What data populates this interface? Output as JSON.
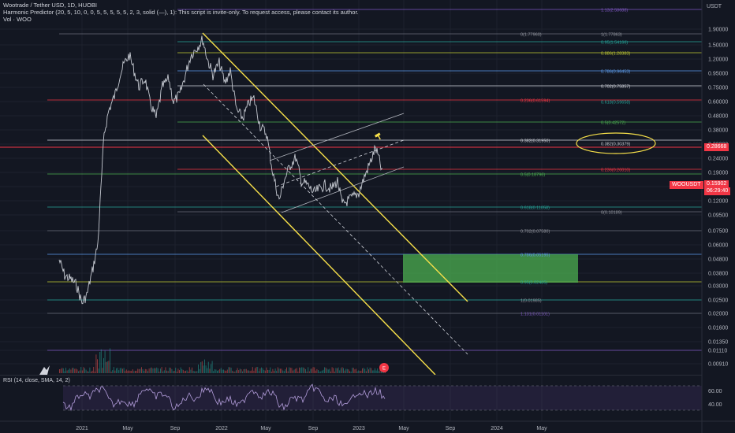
{
  "header": {
    "symbol_line": "Wootrade / Tether USD, 1D, HUOBI",
    "indicator_line": "Harmonic Predictor (20, 5, 10, 0, 0, 5, 5, 5, 5, 5, 2, 3, solid (—), 1): This script is invite-only. To request access, please contact its author.",
    "volume_line": "Vol · WOO"
  },
  "currency": "USDT",
  "price_axis": [
    "1.90000",
    "1.50000",
    "1.20000",
    "0.95000",
    "0.75000",
    "0.60000",
    "0.48000",
    "0.38000",
    "0.30000",
    "0.24000",
    "0.19000",
    "0.15000",
    "0.12000",
    "0.09500",
    "0.07500",
    "0.06000",
    "0.04800",
    "0.03800",
    "0.03000",
    "0.02500",
    "0.02000",
    "0.01600",
    "0.01350",
    "0.01110",
    "0.00910"
  ],
  "fib_left": [
    {
      "label": "0(1.77960)",
      "color": "#9598a1"
    },
    {
      "label": "0.236(0.61594)",
      "color": "#f23645"
    },
    {
      "label": "0.382(0.31950)",
      "color": "#d1d4dc"
    },
    {
      "label": "0.5(0.18796)",
      "color": "#4caf50"
    },
    {
      "label": "0.618(0.11058)",
      "color": "#26a69a"
    },
    {
      "label": "0.702(0.07580)",
      "color": "#9598a1"
    },
    {
      "label": "0.786(0.05195)",
      "color": "#5d9cec"
    },
    {
      "label": "0.95(0.02485)",
      "color": "#26a69a"
    },
    {
      "label": "1(0.01985)",
      "color": "#9598a1"
    },
    {
      "label": "1.131(0.01101)",
      "color": "#7e57c2"
    }
  ],
  "fib_right": [
    {
      "label": "1.13(2.58688)",
      "color": "#7e57c2"
    },
    {
      "label": "1(1.77863)",
      "color": "#9598a1"
    },
    {
      "label": "0.95(1.54166)",
      "color": "#26a69a"
    },
    {
      "label": "0.886(1.28383)",
      "color": "#c0ca33"
    },
    {
      "label": "0.786(0.96453)",
      "color": "#5d9cec"
    },
    {
      "label": "0.702(0.75857)",
      "color": "#d1d4dc"
    },
    {
      "label": "0.618(0.59658)",
      "color": "#26a69a"
    },
    {
      "label": "0.5(0.42572)",
      "color": "#4caf50"
    },
    {
      "label": "0.382(0.30379)",
      "color": "#d1d4dc"
    },
    {
      "label": "0.236(0.20010)",
      "color": "#f23645"
    },
    {
      "label": "0(0.10189)",
      "color": "#9598a1"
    }
  ],
  "badges": {
    "current_price": "0.28668",
    "symbol_tag": "WOOUSDT",
    "last_price": "0.15902",
    "countdown": "06:29:40"
  },
  "rsi": {
    "label": "RSI (14, close, SMA, 14, 2)",
    "axis": [
      "60.00",
      "40.00"
    ]
  },
  "time_axis": [
    "2021",
    "May",
    "Sep",
    "2022",
    "May",
    "Sep",
    "2023",
    "May",
    "Sep",
    "2024",
    "May"
  ],
  "colors": {
    "background": "#131722",
    "channel": "#f7e04a",
    "target_zone": "#4caf50",
    "rsi_line": "#b39ddb",
    "highlight_circle": "#f7e04a"
  }
}
